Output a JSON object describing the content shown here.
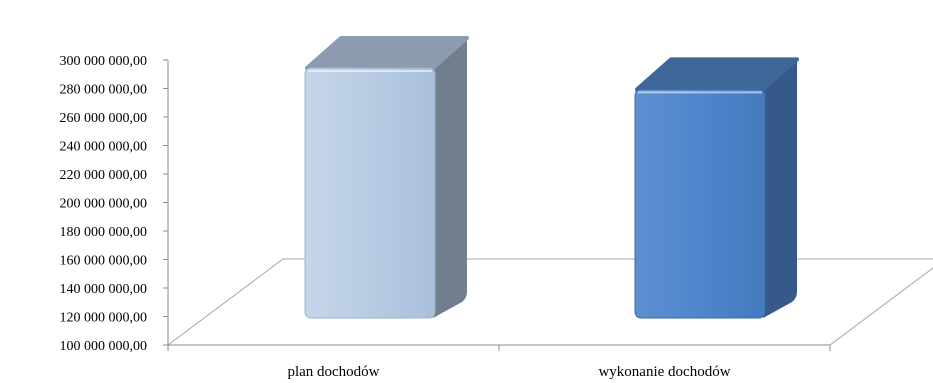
{
  "chart_data": {
    "type": "bar",
    "style": "3d-column",
    "categories": [
      "plan dochodów",
      "wykonanie dochodów"
    ],
    "values": [
      300000000,
      285000000
    ],
    "colors": [
      "#b8cce4",
      "#4f81bd"
    ],
    "ylim": [
      100000000,
      300000000
    ],
    "yticks": [
      "100 000 000,00",
      "120 000 000,00",
      "140 000 000,00",
      "160 000 000,00",
      "180 000 000,00",
      "200 000 000,00",
      "220 000 000,00",
      "240 000 000,00",
      "260 000 000,00",
      "280 000 000,00",
      "300 000 000,00"
    ],
    "grid": false,
    "title": "",
    "xlabel": "",
    "ylabel": ""
  }
}
